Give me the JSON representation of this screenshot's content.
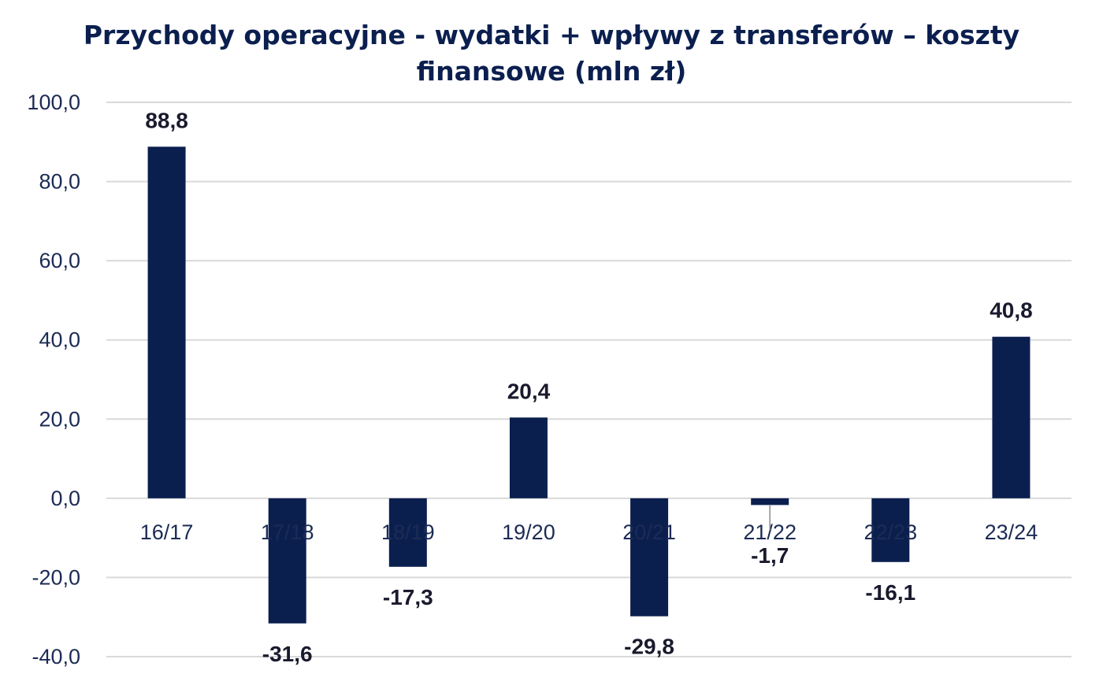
{
  "chart_data": {
    "type": "bar",
    "title_lines": [
      "Przychody operacyjne - wydatki + wpływy z transferów – koszty",
      "finansowe (mln zł)"
    ],
    "categories": [
      "16/17",
      "17/18",
      "18/19",
      "19/20",
      "20/21",
      "21/22",
      "22/23",
      "23/24"
    ],
    "values": [
      88.8,
      -31.6,
      -17.3,
      20.4,
      -29.8,
      -1.7,
      -16.1,
      40.8
    ],
    "data_labels": [
      "88,8",
      "-31,6",
      "-17,3",
      "20,4",
      "-29,8",
      "-1,7",
      "-16,1",
      "40,8"
    ],
    "y_ticks": [
      100,
      80,
      60,
      40,
      20,
      0,
      -20,
      -40
    ],
    "y_tick_labels": [
      "100,0",
      "80,0",
      "60,0",
      "40,0",
      "20,0",
      "0,0",
      "-20,0",
      "-40,0"
    ],
    "ylim": [
      -40,
      100
    ],
    "grid": true,
    "legend": "none",
    "xlabel": "",
    "ylabel": "",
    "colors": {
      "bar": "#0b1f4f",
      "grid": "#d9d9d9",
      "title": "#0b1f4f"
    }
  }
}
